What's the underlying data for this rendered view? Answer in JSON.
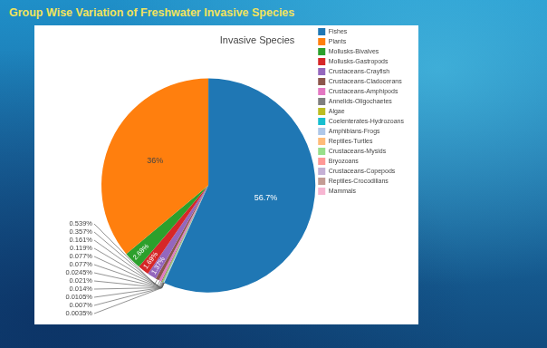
{
  "header": {
    "title": "Group Wise Variation of Freshwater Invasive Species"
  },
  "chart_data": {
    "type": "pie",
    "title": "Invasive Species",
    "categories": [
      "Fishes",
      "Plants",
      "Mollusks-Bivalves",
      "Mollusks-Gastropods",
      "Crustaceans-Crayfish",
      "Crustaceans-Cladocerans",
      "Crustaceans-Amphipods",
      "Annelids-Oligochaetes",
      "Algae",
      "Coelenterates-Hydrozoans",
      "Amphibians-Frogs",
      "Reptiles-Turtles",
      "Crustaceans-Mysids",
      "Bryozoans",
      "Crustaceans-Copepods",
      "Reptiles-Crocodilians",
      "Mammals"
    ],
    "values": [
      56.7,
      36,
      2.68,
      1.69,
      1.37,
      0.539,
      0.357,
      0.161,
      0.119,
      0.077,
      0.077,
      0.0245,
      0.021,
      0.014,
      0.0105,
      0.007,
      0.0035
    ],
    "value_labels": [
      "56.7%",
      "36%",
      "2.68%",
      "1.69%",
      "1.37%",
      "0.539%",
      "0.357%",
      "0.161%",
      "0.119%",
      "0.077%",
      "0.077%",
      "0.0245%",
      "0.021%",
      "0.014%",
      "0.0105%",
      "0.007%",
      "0.0035%"
    ],
    "colors": [
      "#1f77b4",
      "#ff7f0e",
      "#2ca02c",
      "#d62728",
      "#9467bd",
      "#8c564b",
      "#e377c2",
      "#7f7f7f",
      "#bcbd22",
      "#17becf",
      "#aec7e8",
      "#ffbb78",
      "#98df8a",
      "#ff9896",
      "#c5b0d5",
      "#c49c94",
      "#f7b6d2"
    ],
    "data_labels": true,
    "legend": "top-right"
  }
}
